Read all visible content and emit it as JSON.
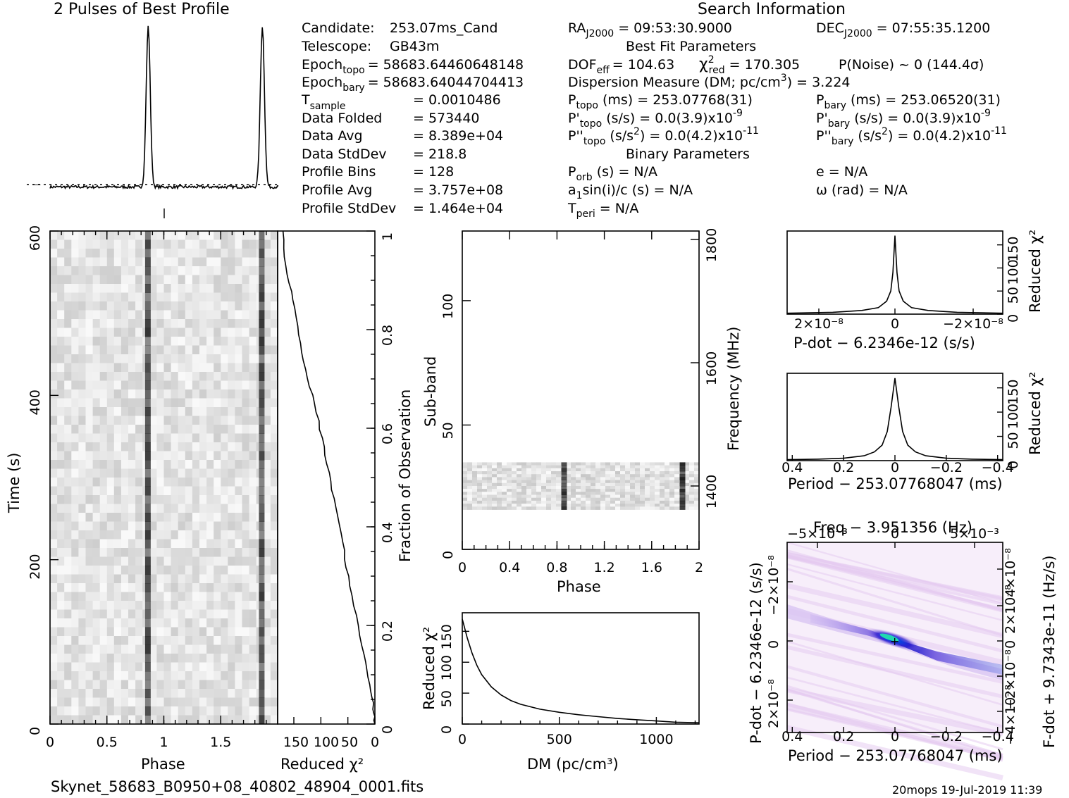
{
  "header": {
    "profile_title": "2 Pulses of Best Profile",
    "search_title": "Search Information",
    "best_fit_title": "Best Fit Parameters",
    "binary_title": "Binary Parameters",
    "filename": "Skynet_58683_B0950+08_40802_48904_0001.fits",
    "footer": "20mops  19-Jul-2019 11:39"
  },
  "candidate_info": {
    "candidate_label": "Candidate:",
    "candidate_value": "253.07ms_Cand",
    "telescope_label": "Telescope:",
    "telescope_value": "GB43m",
    "epoch_topo_main": "Epoch",
    "epoch_topo_sub": "topo",
    "epoch_topo_value": "= 58683.64460648148",
    "epoch_bary_main": "Epoch",
    "epoch_bary_sub": "bary",
    "epoch_bary_value": "= 58683.64044704413",
    "tsample_main": "T",
    "tsample_sub": "sample",
    "tsample_value": "=   0.0010486",
    "data_folded_label": "Data Folded",
    "data_folded_value": "=   573440",
    "data_avg_label": "Data Avg",
    "data_avg_value": "=   8.389e+04",
    "data_stddev_label": "Data StdDev",
    "data_stddev_value": "=   218.8",
    "profile_bins_label": "Profile Bins",
    "profile_bins_value": "=   128",
    "profile_avg_label": "Profile Avg",
    "profile_avg_value": "=   3.757e+08",
    "profile_stddev_label": "Profile StdDev",
    "profile_stddev_value": "=   1.464e+04"
  },
  "search_info": {
    "ra_main": "RA",
    "ra_sub": "J2000",
    "ra_value": "= 09:53:30.9000",
    "dec_main": "DEC",
    "dec_sub": "J2000",
    "dec_value": "= 07:55:35.1200",
    "dof_main": "DOF",
    "dof_sub": "eff",
    "dof_value": "= 104.63",
    "chi_sym": "χ",
    "chi_sup": "2",
    "chi_sub": "red",
    "chi_value": "= 170.305",
    "pnoise": "P(Noise) ~ 0    (144.4σ)",
    "dm_text": "Dispersion Measure (DM; pc/cm",
    "dm_sup": "3",
    "dm_value": ") = 3.224",
    "ptopo_main": "P",
    "ptopo_sub": "topo",
    "ptopo_value": "(ms)  =   253.07768(31)",
    "pbary_main": "P",
    "pbary_sub": "bary",
    "pbary_value": "(ms)  =   253.06520(31)",
    "pdtopo_main": "P'",
    "pdtopo_sub": "topo",
    "pdtopo_value": "(s/s) = 0.0(3.9)x10",
    "pdtopo_exp": "-9",
    "pdbary_main": "P'",
    "pdbary_sub": "bary",
    "pdbary_value": "(s/s) = 0.0(3.9)x10",
    "pdbary_exp": "-9",
    "pddtopo_main": "P''",
    "pddtopo_sub": "topo",
    "pddtopo_value": "(s/s",
    "pddtopo_sup": "2",
    "pddtopo_value2": ") = 0.0(4.2)x10",
    "pddtopo_exp": "-11",
    "pddbary_main": "P''",
    "pddbary_sub": "bary",
    "pddbary_value": "(s/s",
    "pddbary_sup": "2",
    "pddbary_value2": ") = 0.0(4.2)x10",
    "pddbary_exp": "-11",
    "porb_main": "P",
    "porb_sub": "orb",
    "porb_value": "(s) = N/A",
    "e_text": "e = N/A",
    "a1_main": "a",
    "a1_sub": "1",
    "a1_value": "sin(i)/c (s) = N/A",
    "omega_text": "ω (rad) = N/A",
    "tperi_main": "T",
    "tperi_sub": "peri",
    "tperi_value": "= N/A"
  },
  "colors": {
    "ink": "#000000",
    "pdot_map_low": "#ffffff",
    "pdot_map_mid": "#c6a4e8",
    "pdot_map_high": "#0a0ad0",
    "pdot_map_peak": "#18d8a8"
  },
  "chart_data": [
    {
      "type": "line",
      "name": "profile",
      "title": "2 Pulses of Best Profile",
      "x": [
        0,
        0.5,
        0.8,
        0.84,
        0.86,
        0.88,
        0.92,
        1.0,
        1.5,
        1.8,
        1.84,
        1.86,
        1.88,
        1.92,
        2.0
      ],
      "y": [
        0.02,
        0.02,
        0.03,
        0.35,
        1.0,
        0.35,
        0.03,
        0.02,
        0.02,
        0.03,
        0.35,
        1.0,
        0.35,
        0.03,
        0.02
      ],
      "xlim": [
        0,
        2
      ]
    },
    {
      "type": "heatmap",
      "name": "time-phase",
      "xlabel": "Phase",
      "ylabel": "Time (s)",
      "xlim": [
        0,
        2
      ],
      "ylim": [
        0,
        600
      ],
      "xticks": [
        "0",
        "0.5",
        "1",
        "1.5"
      ],
      "yticks": [
        "0",
        "200",
        "400",
        "600"
      ],
      "pulse_phases": [
        0.86,
        1.86
      ]
    },
    {
      "type": "line",
      "name": "time-chi2",
      "xlabel": "Reduced χ²",
      "xticks": [
        "150",
        "100",
        "50",
        "0"
      ],
      "right_label": "Fraction of Observation",
      "right_ticks": [
        "0",
        "0.2",
        "0.4",
        "0.6",
        "0.8",
        "1"
      ],
      "x": [
        0,
        2,
        8,
        20,
        35,
        50,
        60,
        72,
        85,
        98,
        112,
        128,
        140,
        152,
        165,
        172
      ],
      "y": [
        0,
        0.03,
        0.08,
        0.14,
        0.22,
        0.3,
        0.37,
        0.44,
        0.51,
        0.58,
        0.65,
        0.72,
        0.79,
        0.86,
        0.93,
        1.0
      ],
      "xlim": [
        0,
        180
      ],
      "ylim": [
        0,
        1
      ]
    },
    {
      "type": "heatmap",
      "name": "subband-phase",
      "xlabel": "Phase",
      "ylabel": "Sub-band",
      "xlim": [
        0,
        2
      ],
      "ylim": [
        0,
        128
      ],
      "xticks": [
        "0",
        "0.4",
        "0.8",
        "1.2",
        "1.6",
        "2"
      ],
      "yticks": [
        "0",
        "50",
        "100"
      ],
      "right_label": "Frequency (MHz)",
      "right_ticks": [
        "1400",
        "1600",
        "1800"
      ],
      "band_range": [
        16,
        35
      ],
      "pulse_phases": [
        0.86,
        1.86
      ]
    },
    {
      "type": "line",
      "name": "dm-chi2",
      "xlabel": "DM (pc/cm³)",
      "ylabel": "Reduced χ²",
      "xticks": [
        "0",
        "500",
        "1000"
      ],
      "yticks": [
        "0",
        "50",
        "100",
        "150"
      ],
      "x": [
        0,
        25,
        50,
        75,
        100,
        150,
        200,
        250,
        300,
        400,
        500,
        600,
        700,
        800,
        900,
        1000,
        1100,
        1220
      ],
      "y": [
        170,
        140,
        115,
        95,
        80,
        60,
        47,
        38,
        32,
        24,
        19,
        15,
        12,
        9,
        7,
        5,
        3,
        2
      ],
      "xlim": [
        0,
        1220
      ],
      "ylim": [
        0,
        180
      ]
    },
    {
      "type": "line",
      "name": "pdot-chi2",
      "xlabel": "P-dot − 6.2346e-12 (s/s)",
      "ylabel": "Reduced χ²",
      "xticks": [
        "2×10⁻⁸",
        "0",
        "−2×10⁻⁸"
      ],
      "yticks": [
        "0",
        "50",
        "100",
        "150"
      ],
      "x": [
        2.6,
        1.5,
        0.8,
        0.4,
        0.2,
        0.1,
        0.05,
        0,
        -0.05,
        -0.1,
        -0.2,
        -0.4,
        -0.8,
        -1.5,
        -2.6
      ],
      "y": [
        2,
        4,
        8,
        14,
        28,
        50,
        90,
        170,
        90,
        50,
        28,
        14,
        8,
        4,
        2
      ],
      "xlim": [
        2.6,
        -2.6
      ],
      "ylim": [
        0,
        180
      ]
    },
    {
      "type": "line",
      "name": "period-chi2",
      "xlabel": "Period − 253.07768047 (ms)",
      "ylabel": "Reduced χ²",
      "xticks": [
        "0.4",
        "0.2",
        "0",
        "−0.2",
        "−0.4"
      ],
      "yticks": [
        "0",
        "50",
        "100",
        "150"
      ],
      "x": [
        0.42,
        0.3,
        0.2,
        0.12,
        0.08,
        0.05,
        0.03,
        0.015,
        0,
        -0.015,
        -0.03,
        -0.05,
        -0.08,
        -0.12,
        -0.2,
        -0.3,
        -0.42
      ],
      "y": [
        2,
        3,
        5,
        10,
        18,
        32,
        60,
        110,
        170,
        110,
        60,
        32,
        18,
        10,
        5,
        3,
        2
      ],
      "xlim": [
        0.42,
        -0.42
      ],
      "ylim": [
        0,
        180
      ]
    },
    {
      "type": "heatmap",
      "name": "ppdot",
      "title": "Freq − 3.951356 (Hz)",
      "xlabel": "Period − 253.07768047 (ms)",
      "ylabel": "P-dot − 6.2346e-12 (s/s)",
      "right_label": "F-dot + 9.7343e-11 (Hz/s)",
      "xticks": [
        "0.4",
        "0.2",
        "0",
        "−0.2",
        "−0.4"
      ],
      "top_ticks": [
        "−5×10⁻³",
        "0",
        "5×10⁻³"
      ],
      "yticks": [
        "−2×10⁻⁸",
        "0",
        "2×10⁻⁸"
      ],
      "right_ticks": [
        "4×10⁻⁸",
        "2×10⁻⁸",
        "0",
        "−2×10⁻⁸",
        "−4×10⁻⁸"
      ],
      "peak": [
        0,
        0
      ]
    }
  ]
}
